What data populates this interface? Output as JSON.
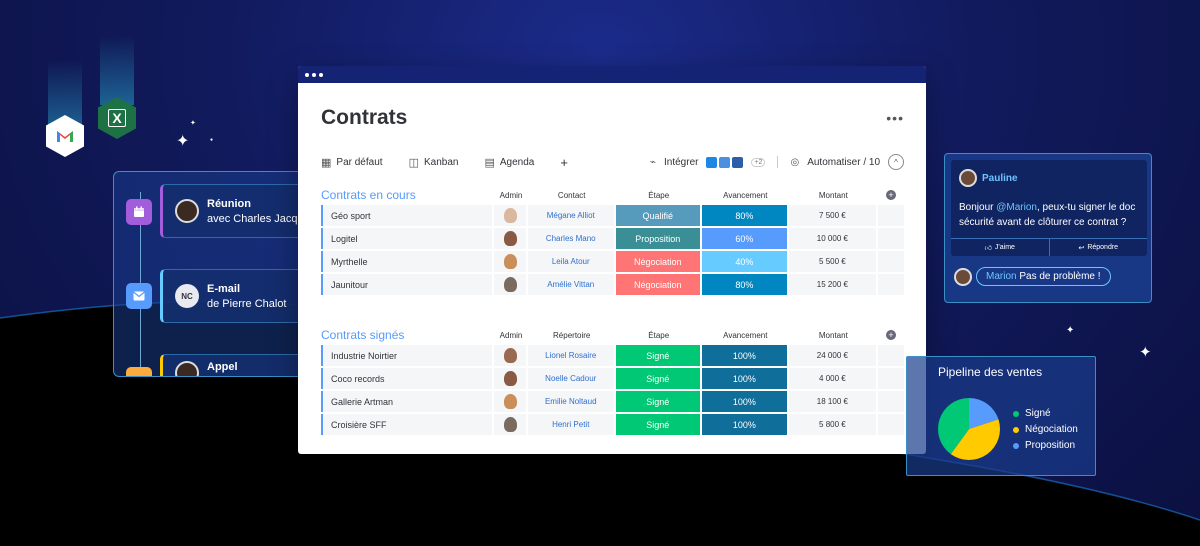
{
  "launcher": {
    "gmail_icon": "gmail-icon",
    "excel_icon": "excel-icon",
    "excel_letter": "X"
  },
  "activity": [
    {
      "title": "Réunion",
      "subtitle": "avec Charles Jacquar",
      "icon": "calendar-icon",
      "color": "#a25ddc",
      "border": "#a25ddc"
    },
    {
      "title": "E-mail",
      "subtitle": "de Pierre Chalot",
      "icon": "mail-icon",
      "color": "#579bfc",
      "border": "#66ccff",
      "initials": "NC"
    },
    {
      "title": "Appel",
      "subtitle": "",
      "icon": "phone-icon",
      "color": "#fdab3d",
      "border": "#ffcb00"
    }
  ],
  "board": {
    "title": "Contrats",
    "more": "•••",
    "tabs": [
      {
        "label": "Par défaut",
        "icon": "table-icon"
      },
      {
        "label": "Kanban",
        "icon": "kanban-icon"
      },
      {
        "label": "Agenda",
        "icon": "calendar-icon"
      }
    ],
    "add_view": "+",
    "integrate": "Intégrer",
    "integrate_more": "+2",
    "automate": "Automatiser / 10",
    "collapse": "^"
  },
  "groups": [
    {
      "title": "Contrats en cours",
      "col_admin": "Admin",
      "col_contact": "Contact",
      "col_etape": "Étape",
      "col_prog": "Avancement",
      "col_amt": "Montant",
      "rows": [
        {
          "name": "Géo sport",
          "contact": "Mégane Alliot",
          "etape": "Qualifié",
          "etape_color": "#579bbc",
          "prog": "80%",
          "prog_color": "#0086c0",
          "amount": "7 500 €",
          "face": "#d9b8a0"
        },
        {
          "name": "Logitel",
          "contact": "Charles Mano",
          "etape": "Proposition",
          "etape_color": "#3a8f96",
          "prog": "60%",
          "prog_color": "#579bfc",
          "amount": "10 000 €",
          "face": "#8a5a44"
        },
        {
          "name": "Myrthelle",
          "contact": "Leila Atour",
          "etape": "Négociation",
          "etape_color": "#ff7575",
          "prog": "40%",
          "prog_color": "#66ccff",
          "amount": "5 500 €",
          "face": "#c98e5a"
        },
        {
          "name": "Jaunitour",
          "contact": "Amélie Vittan",
          "etape": "Négociation",
          "etape_color": "#ff7575",
          "prog": "80%",
          "prog_color": "#0086c0",
          "amount": "15 200 €",
          "face": "#7a6a60"
        }
      ]
    },
    {
      "title": "Contrats signés",
      "col_admin": "Admin",
      "col_contact": "Répertoire",
      "col_etape": "Étape",
      "col_prog": "Avancement",
      "col_amt": "Montant",
      "rows": [
        {
          "name": "Industrie Noirtier",
          "contact": "Lionel Rosaire",
          "etape": "Signé",
          "etape_color": "#00c875",
          "prog": "100%",
          "prog_color": "#0f6e9a",
          "amount": "24 000 €",
          "face": "#9a6a50"
        },
        {
          "name": "Coco records",
          "contact": "Noelle Cadour",
          "etape": "Signé",
          "etape_color": "#00c875",
          "prog": "100%",
          "prog_color": "#0f6e9a",
          "amount": "4 000 €",
          "face": "#8a5a44"
        },
        {
          "name": "Gallerie Artman",
          "contact": "Emilie Noltaud",
          "etape": "Signé",
          "etape_color": "#00c875",
          "prog": "100%",
          "prog_color": "#0f6e9a",
          "amount": "18 100 €",
          "face": "#c98e5a"
        },
        {
          "name": "Croisière SFF",
          "contact": "Henri Petit",
          "etape": "Signé",
          "etape_color": "#00c875",
          "prog": "100%",
          "prog_color": "#0f6e9a",
          "amount": "5 800 €",
          "face": "#7a6a60"
        }
      ]
    }
  ],
  "chat": {
    "user": "Pauline",
    "msg_pre": "Bonjour ",
    "mention": "@Marion",
    "msg_post": ", peux-tu signer le doc sécurité avant de clôturer ce contrat ?",
    "like": "J'aime",
    "reply": "Répondre",
    "reply_mention": "Marion",
    "reply_text": " Pas de problème !"
  },
  "pipeline": {
    "title": "Pipeline des ventes",
    "legend": [
      {
        "label": "Signé",
        "color": "#00c875"
      },
      {
        "label": "Négociation",
        "color": "#ffcb00"
      },
      {
        "label": "Proposition",
        "color": "#579bfc"
      }
    ]
  },
  "chart_data": {
    "type": "pie",
    "title": "Pipeline des ventes",
    "categories": [
      "Signé",
      "Négociation",
      "Proposition"
    ],
    "values": [
      40,
      40,
      20
    ]
  }
}
